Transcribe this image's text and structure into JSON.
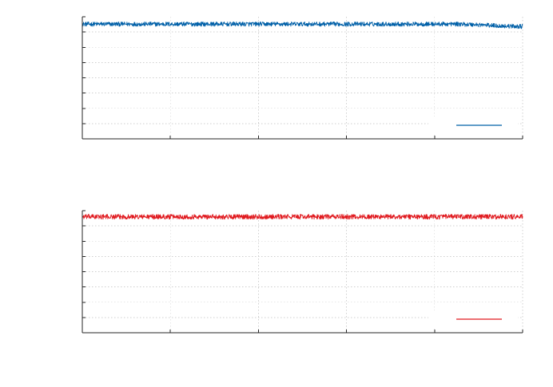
{
  "chart_data": [
    {
      "type": "line",
      "title": "",
      "xlabel": "",
      "ylabel": "",
      "grid": true,
      "legend": "bottom-right",
      "color": "#0060a8",
      "xlim": [
        0,
        1
      ],
      "ylim": [
        0,
        1
      ],
      "xticks": [
        0,
        0.2,
        0.4,
        0.6,
        0.8,
        1.0
      ],
      "yticks": [
        0,
        0.125,
        0.25,
        0.375,
        0.5,
        0.625,
        0.75,
        0.875,
        1.0
      ],
      "series": [
        {
          "x": [
            0,
            0.1,
            0.2,
            0.3,
            0.4,
            0.5,
            0.6,
            0.7,
            0.8,
            0.85,
            0.9,
            0.95,
            1.0
          ],
          "values": [
            0.94,
            0.94,
            0.94,
            0.94,
            0.94,
            0.94,
            0.94,
            0.94,
            0.94,
            0.94,
            0.935,
            0.925,
            0.92
          ],
          "noise": 0.018
        }
      ]
    },
    {
      "type": "line",
      "title": "",
      "xlabel": "",
      "ylabel": "",
      "grid": true,
      "legend": "bottom-right",
      "color": "#e0191e",
      "xlim": [
        0,
        1
      ],
      "ylim": [
        0,
        1
      ],
      "xticks": [
        0,
        0.2,
        0.4,
        0.6,
        0.8,
        1.0
      ],
      "yticks": [
        0,
        0.125,
        0.25,
        0.375,
        0.5,
        0.625,
        0.75,
        0.875,
        1.0
      ],
      "series": [
        {
          "x": [
            0,
            0.2,
            0.4,
            0.6,
            0.8,
            1.0
          ],
          "values": [
            0.95,
            0.95,
            0.95,
            0.95,
            0.95,
            0.95
          ],
          "noise": 0.02
        }
      ]
    }
  ]
}
